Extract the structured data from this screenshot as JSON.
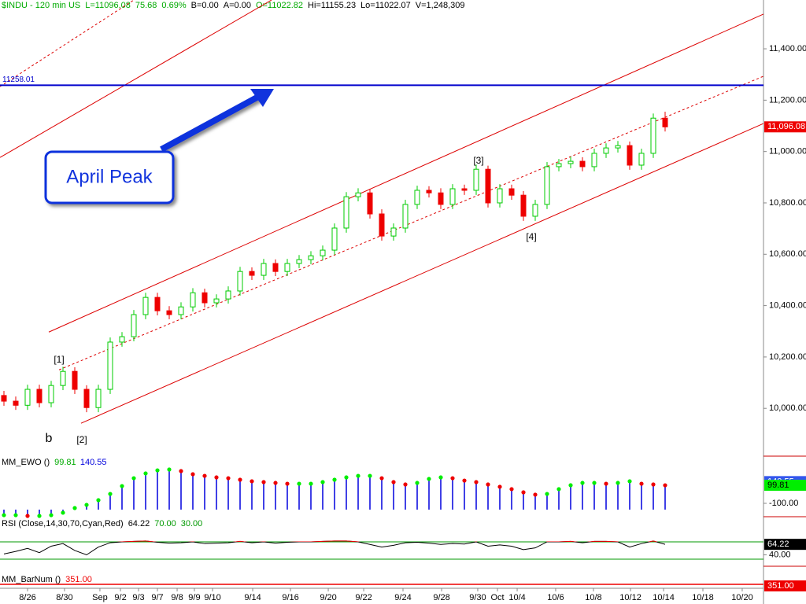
{
  "chart_data": [
    {
      "type": "candlestick",
      "header": [
        {
          "text": "$INDU - 120 min  US",
          "color": "#00aa00"
        },
        {
          "text": "L=11096.08",
          "color": "#00aa00"
        },
        {
          "text": "75.68",
          "color": "#00aa00"
        },
        {
          "text": "0.69%",
          "color": "#00aa00"
        },
        {
          "text": "B=0.00",
          "color": "#000000"
        },
        {
          "text": "A=0.00",
          "color": "#000000"
        },
        {
          "text": "O=11022.82",
          "color": "#00aa00"
        },
        {
          "text": "Hi=11155.23",
          "color": "#000000"
        },
        {
          "text": "Lo=11022.07",
          "color": "#000000"
        },
        {
          "text": "V=1,248,309",
          "color": "#000000"
        }
      ],
      "open": [
        10050,
        10028,
        10012,
        10074,
        10022,
        10089,
        10144,
        10074,
        10003,
        10074,
        10258,
        10279,
        10365,
        10432,
        10380,
        10365,
        10395,
        10450,
        10411,
        10426,
        10457,
        10533,
        10518,
        10564,
        10533,
        10564,
        10579,
        10594,
        10616,
        10702,
        10824,
        10839,
        10757,
        10671,
        10702,
        10794,
        10849,
        10839,
        10794,
        10855,
        10849,
        10931,
        10800,
        10855,
        10830,
        10748,
        10794,
        10941,
        10953,
        10962,
        10941,
        10993,
        11014,
        11023,
        10947,
        10993,
        11130
      ],
      "high": [
        10068,
        10046,
        10092,
        10092,
        10107,
        10162,
        10160,
        10090,
        10092,
        10276,
        10297,
        10383,
        10450,
        10450,
        10398,
        10413,
        10468,
        10466,
        10444,
        10475,
        10551,
        10549,
        10582,
        10580,
        10582,
        10597,
        10612,
        10634,
        10720,
        10842,
        10857,
        10855,
        10775,
        10720,
        10812,
        10867,
        10865,
        10857,
        10873,
        10871,
        10949,
        10945,
        10873,
        10871,
        10846,
        10812,
        10959,
        10971,
        10980,
        10978,
        11011,
        11032,
        11041,
        11039,
        11011,
        11148,
        11155
      ],
      "low": [
        10010,
        9994,
        9994,
        10004,
        10004,
        10071,
        10056,
        9985,
        9985,
        10056,
        10240,
        10261,
        10347,
        10362,
        10347,
        10347,
        10377,
        10393,
        10393,
        10408,
        10439,
        10500,
        10500,
        10515,
        10515,
        10546,
        10561,
        10576,
        10598,
        10684,
        10806,
        10739,
        10653,
        10653,
        10684,
        10776,
        10821,
        10776,
        10776,
        10831,
        10831,
        10782,
        10782,
        10812,
        10730,
        10730,
        10776,
        10923,
        10935,
        10923,
        10923,
        10975,
        10996,
        10929,
        10929,
        10975,
        11078
      ],
      "close": [
        10028,
        10012,
        10074,
        10022,
        10089,
        10144,
        10074,
        10003,
        10074,
        10258,
        10279,
        10365,
        10432,
        10380,
        10365,
        10395,
        10450,
        10411,
        10426,
        10457,
        10533,
        10518,
        10564,
        10533,
        10564,
        10579,
        10594,
        10616,
        10702,
        10824,
        10839,
        10757,
        10671,
        10702,
        10794,
        10849,
        10839,
        10794,
        10855,
        10849,
        10931,
        10800,
        10855,
        10830,
        10748,
        10794,
        10941,
        10953,
        10962,
        10941,
        10993,
        11014,
        11023,
        10947,
        10993,
        11130,
        11096.08
      ],
      "last_price_label": "11,096.08",
      "up_color": "#00cc00",
      "down_color": "#ee0000",
      "xlim": [
        -0.333,
        64.333
      ],
      "xticks": [
        {
          "value": 2,
          "label": "8/26"
        },
        {
          "value": 5.13,
          "label": "8/30"
        },
        {
          "value": 8.13,
          "label": "Sep"
        },
        {
          "value": 9.87,
          "label": "9/2"
        },
        {
          "value": 11.4,
          "label": "9/3"
        },
        {
          "value": 13,
          "label": "9/7"
        },
        {
          "value": 14.67,
          "label": "9/8"
        },
        {
          "value": 16.13,
          "label": "9/9"
        },
        {
          "value": 17.67,
          "label": "9/10"
        },
        {
          "value": 21.07,
          "label": "9/14"
        },
        {
          "value": 24.27,
          "label": "9/16"
        },
        {
          "value": 27.47,
          "label": "9/20"
        },
        {
          "value": 30.47,
          "label": "9/22"
        },
        {
          "value": 33.8,
          "label": "9/24"
        },
        {
          "value": 37.07,
          "label": "9/28"
        },
        {
          "value": 40.13,
          "label": "9/30"
        },
        {
          "value": 41.8,
          "label": "Oct"
        },
        {
          "value": 43.47,
          "label": "10/4"
        },
        {
          "value": 46.73,
          "label": "10/6"
        },
        {
          "value": 49.93,
          "label": "10/8"
        },
        {
          "value": 53.07,
          "label": "10/12"
        },
        {
          "value": 55.87,
          "label": "10/14"
        },
        {
          "value": 59.2,
          "label": "10/18"
        },
        {
          "value": 62.53,
          "label": "10/20"
        }
      ],
      "ylim": [
        9820,
        11590
      ],
      "yticks": [
        {
          "value": 10000,
          "label": "10,000.00"
        },
        {
          "value": 10200,
          "label": "10,200.00"
        },
        {
          "value": 10400,
          "label": "10,400.00"
        },
        {
          "value": 10600,
          "label": "10,600.00"
        },
        {
          "value": 10800,
          "label": "10,800.00"
        },
        {
          "value": 11000,
          "label": "11,000.00"
        },
        {
          "value": 11200,
          "label": "11,200.00"
        },
        {
          "value": 11400,
          "label": "11,400.00"
        }
      ],
      "hline": {
        "value": 11258.01,
        "color": "#0000cc"
      },
      "trendlines": [
        {
          "points": [
            [
              6.53,
              9942
            ],
            [
              64.33,
              11109
            ]
          ],
          "color": "#dd0000",
          "dashed": false
        },
        {
          "points": [
            [
              4.67,
              10150
            ],
            [
              64.33,
              11293
            ]
          ],
          "color": "#dd0000",
          "dashed": true
        },
        {
          "points": [
            [
              3.8,
              10297
            ],
            [
              64.33,
              11535
            ]
          ],
          "color": "#dd0000",
          "dashed": false
        },
        {
          "points": [
            [
              -0.33,
              10977
            ],
            [
              22.67,
              11590
            ]
          ],
          "color": "#dd0000",
          "dashed": false
        },
        {
          "points": [
            [
              -0.33,
              11253
            ],
            [
              11,
              11590
            ]
          ],
          "color": "#dd0000",
          "dashed": true
        }
      ],
      "annotations": [
        "[1]",
        "b",
        "[2]",
        "[3]",
        "[4]"
      ],
      "callout": "April Peak"
    },
    {
      "type": "ewo",
      "title": "MM_EWO ()",
      "values": [
        -231,
        -231,
        -239,
        -239,
        -231,
        -204,
        -152,
        -117,
        -65,
        4,
        91,
        178,
        231,
        265,
        274,
        257,
        222,
        204,
        187,
        178,
        161,
        144,
        135,
        126,
        117,
        117,
        117,
        135,
        161,
        187,
        204,
        204,
        178,
        135,
        109,
        126,
        170,
        187,
        178,
        152,
        135,
        109,
        83,
        57,
        22,
        -4,
        4,
        57,
        100,
        126,
        126,
        117,
        126,
        144,
        117,
        109,
        99.81
      ],
      "signal": 140.55,
      "up_color": "#00ee00",
      "down_color": "#ee0000",
      "bar_color": "#0000dd",
      "ylim": [
        -274,
        396
      ],
      "yticks": [
        {
          "value": -100,
          "label": "-100.00"
        }
      ]
    },
    {
      "type": "rsi",
      "title": "RSI (Close,14,30,70,Cyan,Red)",
      "values": [
        42,
        48,
        55,
        45,
        60,
        66,
        50,
        40,
        58,
        68,
        70,
        71,
        72,
        69,
        67,
        68,
        70,
        66,
        67,
        68,
        71,
        68,
        70,
        67,
        69,
        70,
        70,
        71,
        72,
        72,
        70,
        64,
        58,
        62,
        68,
        69,
        67,
        64,
        66,
        65,
        70,
        60,
        63,
        60,
        52,
        56,
        70,
        70,
        71,
        68,
        71,
        71,
        70,
        58,
        66,
        72,
        64.22
      ],
      "levels": [
        {
          "value": 70,
          "label": "70.00"
        },
        {
          "value": 30,
          "label": "30.00"
        }
      ],
      "line_color": "#000000",
      "over_color": "#ee0000",
      "level_color": "#009900",
      "ylim": [
        13.6,
        122.7
      ],
      "yticks": [
        {
          "value": 40,
          "label": "40.00"
        }
      ]
    },
    {
      "type": "barnum",
      "title": "MM_BarNum ()",
      "value": {
        "value": 351,
        "label": "351.00"
      },
      "color": "#ee0000"
    }
  ]
}
